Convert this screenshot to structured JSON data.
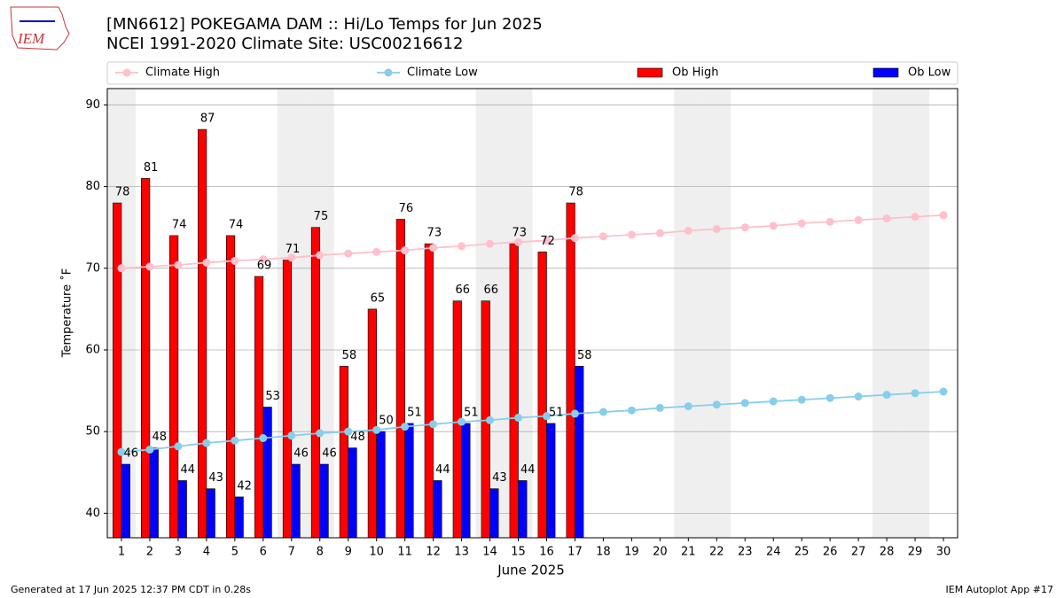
{
  "logo_text": "IEM",
  "chart_data": {
    "type": "bar",
    "title": "[MN6612] POKEGAMA DAM :: Hi/Lo Temps for Jun 2025",
    "subtitle": "NCEI 1991-2020 Climate Site: USC00216612",
    "x_label": "June 2025",
    "y_label": "Temperature ˚F",
    "footer_left": "Generated at 17 Jun 2025 12:37 PM CDT in 0.28s",
    "footer_right": "IEM Autoplot App #17",
    "x": [
      1,
      2,
      3,
      4,
      5,
      6,
      7,
      8,
      9,
      10,
      11,
      12,
      13,
      14,
      15,
      16,
      17,
      18,
      19,
      20,
      21,
      22,
      23,
      24,
      25,
      26,
      27,
      28,
      29,
      30
    ],
    "xlim": [
      0.5,
      30.5
    ],
    "xticks": [
      1,
      2,
      3,
      4,
      5,
      6,
      7,
      8,
      9,
      10,
      11,
      12,
      13,
      14,
      15,
      16,
      17,
      18,
      19,
      20,
      21,
      22,
      23,
      24,
      25,
      26,
      27,
      28,
      29,
      30
    ],
    "ylim": [
      37,
      92
    ],
    "yticks": [
      40,
      50,
      60,
      70,
      80,
      90
    ],
    "grid": true,
    "shaded_days": [
      1,
      7,
      8,
      14,
      15,
      21,
      22,
      28,
      29
    ],
    "series": [
      {
        "name": "Climate High",
        "type": "line",
        "color": "#ffc0cb",
        "values": [
          70.0,
          70.2,
          70.4,
          70.7,
          70.9,
          71.1,
          71.3,
          71.6,
          71.8,
          72.0,
          72.2,
          72.5,
          72.7,
          73.0,
          73.2,
          73.4,
          73.7,
          73.9,
          74.1,
          74.3,
          74.6,
          74.8,
          75.0,
          75.2,
          75.5,
          75.7,
          75.9,
          76.1,
          76.3,
          76.5
        ]
      },
      {
        "name": "Climate Low",
        "type": "line",
        "color": "#87ceeb",
        "values": [
          47.5,
          47.8,
          48.2,
          48.6,
          48.9,
          49.2,
          49.5,
          49.8,
          50.0,
          50.2,
          50.6,
          50.9,
          51.2,
          51.4,
          51.7,
          51.9,
          52.2,
          52.4,
          52.6,
          52.9,
          53.1,
          53.3,
          53.5,
          53.7,
          53.9,
          54.1,
          54.3,
          54.5,
          54.7,
          54.9
        ]
      },
      {
        "name": "Ob High",
        "type": "bar",
        "color": "#ff0000",
        "values": [
          78,
          81,
          74,
          87,
          74,
          69,
          71,
          75,
          58,
          65,
          76,
          73,
          66,
          66,
          73,
          72,
          78,
          null,
          null,
          null,
          null,
          null,
          null,
          null,
          null,
          null,
          null,
          null,
          null,
          null
        ]
      },
      {
        "name": "Ob Low",
        "type": "bar",
        "color": "#0000ff",
        "values": [
          46,
          48,
          44,
          43,
          42,
          53,
          46,
          46,
          48,
          50,
          51,
          44,
          51,
          43,
          44,
          51,
          58,
          null,
          null,
          null,
          null,
          null,
          null,
          null,
          null,
          null,
          null,
          null,
          null,
          null
        ]
      }
    ]
  }
}
